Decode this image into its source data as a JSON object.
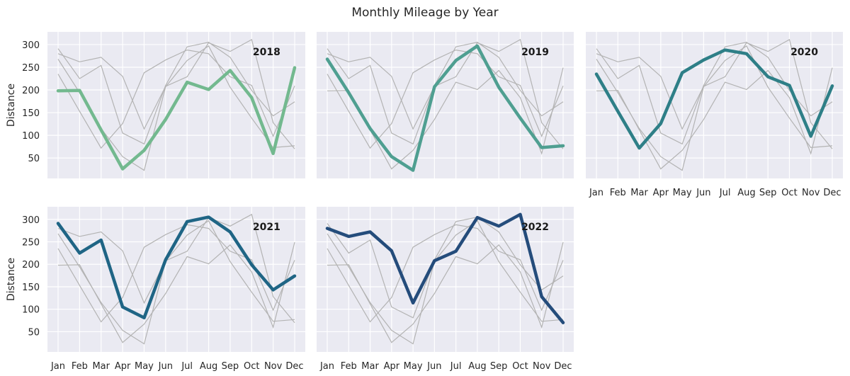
{
  "chart_data": {
    "type": "line",
    "title": "Monthly Mileage by Year",
    "ylabel": "Distance",
    "xlabel": "",
    "categories": [
      "Jan",
      "Feb",
      "Mar",
      "Apr",
      "May",
      "Jun",
      "Jul",
      "Aug",
      "Sep",
      "Oct",
      "Nov",
      "Dec"
    ],
    "yticks": [
      50,
      100,
      150,
      200,
      250,
      300
    ],
    "ylim": [
      5,
      328
    ],
    "grid": true,
    "background_color": "#eaeaf2",
    "context_line_color": "#b3b3b3",
    "series": [
      {
        "name": "2018",
        "color": "#73b98f",
        "values": [
          198,
          199,
          112,
          26,
          67,
          135,
          217,
          201,
          243,
          183,
          60,
          249
        ]
      },
      {
        "name": "2019",
        "color": "#4f9f91",
        "values": [
          268,
          194,
          115,
          53,
          23,
          207,
          265,
          297,
          206,
          138,
          73,
          77
        ]
      },
      {
        "name": "2020",
        "color": "#2e7f87",
        "values": [
          235,
          153,
          72,
          126,
          238,
          266,
          288,
          280,
          229,
          210,
          98,
          209
        ]
      },
      {
        "name": "2021",
        "color": "#1f6585",
        "values": [
          291,
          225,
          254,
          105,
          81,
          210,
          295,
          305,
          272,
          199,
          143,
          174
        ]
      },
      {
        "name": "2022",
        "color": "#244c7b",
        "values": [
          280,
          262,
          272,
          230,
          114,
          208,
          229,
          304,
          285,
          311,
          128,
          70
        ]
      }
    ]
  }
}
